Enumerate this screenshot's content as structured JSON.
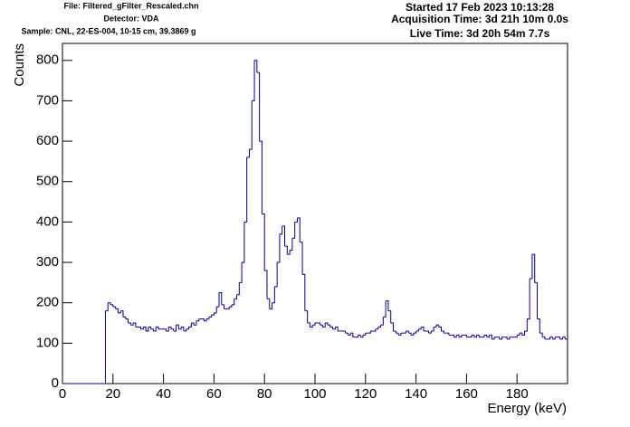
{
  "chart_data": {
    "type": "histogram",
    "info_left": [
      "File: Filtered_gFilter_Rescaled.chn",
      "Detector: VDA",
      "Sample: CNL, 22-ES-004, 10-15 cm, 39.3869 g"
    ],
    "info_right": [
      "Started 17 Feb 2023 10:13:28",
      "Acquisition Time: 3d 21h 10m 0.0s",
      "Live Time: 3d 20h 54m 7.7s"
    ],
    "xlabel": "Energy (keV)",
    "ylabel": "Counts",
    "color": "#000099",
    "xlim": [
      0,
      200
    ],
    "ylim": [
      0,
      842
    ],
    "xticks": [
      0,
      20,
      40,
      60,
      80,
      100,
      120,
      140,
      160,
      180
    ],
    "yticks": [
      0,
      100,
      200,
      300,
      400,
      500,
      600,
      700,
      800
    ],
    "bins": [
      0,
      1,
      2,
      3,
      4,
      5,
      6,
      7,
      8,
      9,
      10,
      11,
      12,
      13,
      14,
      15,
      16,
      17,
      18,
      19,
      20,
      21,
      22,
      23,
      24,
      25,
      26,
      27,
      28,
      29,
      30,
      31,
      32,
      33,
      34,
      35,
      36,
      37,
      38,
      39,
      40,
      41,
      42,
      43,
      44,
      45,
      46,
      47,
      48,
      49,
      50,
      51,
      52,
      53,
      54,
      55,
      56,
      57,
      58,
      59,
      60,
      61,
      62,
      63,
      64,
      65,
      66,
      67,
      68,
      69,
      70,
      71,
      72,
      73,
      74,
      75,
      76,
      77,
      78,
      79,
      80,
      81,
      82,
      83,
      84,
      85,
      86,
      87,
      88,
      89,
      90,
      91,
      92,
      93,
      94,
      95,
      96,
      97,
      98,
      99,
      100,
      101,
      102,
      103,
      104,
      105,
      106,
      107,
      108,
      109,
      110,
      111,
      112,
      113,
      114,
      115,
      116,
      117,
      118,
      119,
      120,
      121,
      122,
      123,
      124,
      125,
      126,
      127,
      128,
      129,
      130,
      131,
      132,
      133,
      134,
      135,
      136,
      137,
      138,
      139,
      140,
      141,
      142,
      143,
      144,
      145,
      146,
      147,
      148,
      149,
      150,
      151,
      152,
      153,
      154,
      155,
      156,
      157,
      158,
      159,
      160,
      161,
      162,
      163,
      164,
      165,
      166,
      167,
      168,
      169,
      170,
      171,
      172,
      173,
      174,
      175,
      176,
      177,
      178,
      179,
      180,
      181,
      182,
      183,
      184,
      185,
      186,
      187,
      188,
      189,
      190,
      191,
      192,
      193,
      194,
      195,
      196,
      197,
      198,
      199,
      200
    ],
    "values": [
      0,
      0,
      0,
      0,
      0,
      0,
      0,
      0,
      0,
      0,
      0,
      0,
      0,
      0,
      0,
      0,
      0,
      180,
      200,
      195,
      190,
      185,
      175,
      180,
      165,
      160,
      150,
      145,
      150,
      140,
      140,
      135,
      140,
      130,
      140,
      135,
      130,
      140,
      135,
      135,
      135,
      130,
      140,
      135,
      130,
      145,
      135,
      140,
      130,
      135,
      140,
      150,
      145,
      155,
      160,
      160,
      155,
      160,
      165,
      170,
      175,
      190,
      225,
      195,
      185,
      185,
      190,
      195,
      210,
      220,
      250,
      300,
      400,
      560,
      580,
      700,
      800,
      770,
      600,
      420,
      280,
      210,
      185,
      200,
      240,
      300,
      370,
      390,
      340,
      320,
      330,
      360,
      400,
      410,
      350,
      270,
      180,
      150,
      140,
      145,
      150,
      150,
      145,
      140,
      150,
      145,
      140,
      135,
      140,
      130,
      130,
      130,
      125,
      120,
      125,
      115,
      115,
      120,
      115,
      120,
      125,
      125,
      130,
      130,
      135,
      140,
      145,
      165,
      205,
      180,
      150,
      130,
      125,
      120,
      125,
      125,
      130,
      125,
      120,
      125,
      130,
      135,
      140,
      130,
      130,
      125,
      130,
      140,
      145,
      140,
      130,
      125,
      125,
      120,
      120,
      115,
      120,
      115,
      120,
      120,
      115,
      115,
      120,
      115,
      120,
      115,
      115,
      120,
      115,
      120,
      110,
      115,
      115,
      110,
      115,
      115,
      110,
      115,
      115,
      115,
      120,
      125,
      120,
      130,
      160,
      260,
      320,
      250,
      160,
      125,
      115,
      110,
      110,
      115,
      110,
      115,
      115,
      110,
      115,
      110
    ]
  }
}
